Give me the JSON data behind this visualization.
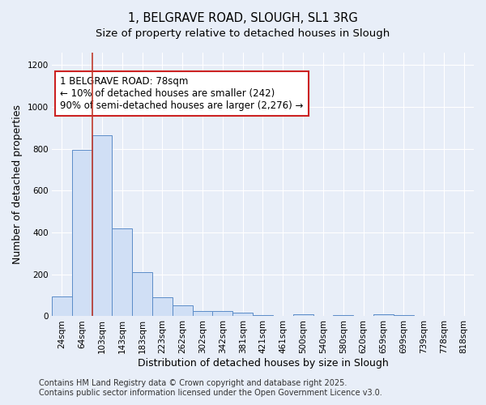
{
  "title": "1, BELGRAVE ROAD, SLOUGH, SL1 3RG",
  "subtitle": "Size of property relative to detached houses in Slough",
  "xlabel": "Distribution of detached houses by size in Slough",
  "ylabel": "Number of detached properties",
  "bar_labels": [
    "24sqm",
    "64sqm",
    "103sqm",
    "143sqm",
    "183sqm",
    "223sqm",
    "262sqm",
    "302sqm",
    "342sqm",
    "381sqm",
    "421sqm",
    "461sqm",
    "500sqm",
    "540sqm",
    "580sqm",
    "620sqm",
    "659sqm",
    "699sqm",
    "739sqm",
    "778sqm",
    "818sqm"
  ],
  "bar_values": [
    95,
    795,
    865,
    420,
    210,
    90,
    52,
    25,
    22,
    15,
    5,
    2,
    8,
    0,
    5,
    0,
    10,
    5,
    0,
    0,
    0
  ],
  "bar_color": "#d0dff5",
  "bar_edge_color": "#5b8cc8",
  "background_color": "#e8eef8",
  "plot_bg_color": "#e8eef8",
  "grid_color": "#ffffff",
  "vline_x": 1.5,
  "vline_color": "#c0392b",
  "annotation_text": "1 BELGRAVE ROAD: 78sqm\n← 10% of detached houses are smaller (242)\n90% of semi-detached houses are larger (2,276) →",
  "annotation_box_facecolor": "#ffffff",
  "annotation_box_edgecolor": "#cc2222",
  "ylim": [
    0,
    1260
  ],
  "yticks": [
    0,
    200,
    400,
    600,
    800,
    1000,
    1200
  ],
  "footer_text": "Contains HM Land Registry data © Crown copyright and database right 2025.\nContains public sector information licensed under the Open Government Licence v3.0.",
  "title_fontsize": 10.5,
  "subtitle_fontsize": 9.5,
  "axis_label_fontsize": 9,
  "tick_fontsize": 7.5,
  "annotation_fontsize": 8.5,
  "footer_fontsize": 7
}
